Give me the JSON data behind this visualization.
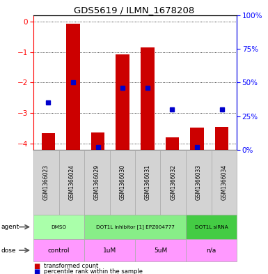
{
  "title": "GDS5619 / ILMN_1678208",
  "samples": [
    "GSM1366023",
    "GSM1366024",
    "GSM1366029",
    "GSM1366030",
    "GSM1366031",
    "GSM1366032",
    "GSM1366033",
    "GSM1366034"
  ],
  "bar_values": [
    -3.65,
    -0.07,
    -3.62,
    -1.08,
    -0.85,
    -3.78,
    -3.48,
    -3.45
  ],
  "percentile_values": [
    35,
    50,
    2,
    46,
    46,
    30,
    2,
    30
  ],
  "ylim_left": [
    -4.2,
    0.2
  ],
  "ylim_right": [
    0,
    100
  ],
  "yticks_left": [
    -4,
    -3,
    -2,
    -1,
    0
  ],
  "yticks_right": [
    0,
    25,
    50,
    75,
    100
  ],
  "bar_color": "#cc0000",
  "dot_color": "#0000cc",
  "bar_width": 0.55,
  "sample_bg_color": "#d3d3d3",
  "agent_groups": [
    {
      "label": "DMSO",
      "start": 0,
      "end": 2,
      "color": "#aaffaa"
    },
    {
      "label": "DOT1L inhibitor [1] EPZ004777",
      "start": 2,
      "end": 6,
      "color": "#88ee88"
    },
    {
      "label": "DOT1L siRNA",
      "start": 6,
      "end": 8,
      "color": "#44cc44"
    }
  ],
  "dose_groups": [
    {
      "label": "control",
      "start": 0,
      "end": 2,
      "color": "#ff99ff"
    },
    {
      "label": "1uM",
      "start": 2,
      "end": 4,
      "color": "#ff99ff"
    },
    {
      "label": "5uM",
      "start": 4,
      "end": 6,
      "color": "#ff99ff"
    },
    {
      "label": "n/a",
      "start": 6,
      "end": 8,
      "color": "#ff99ff"
    }
  ]
}
